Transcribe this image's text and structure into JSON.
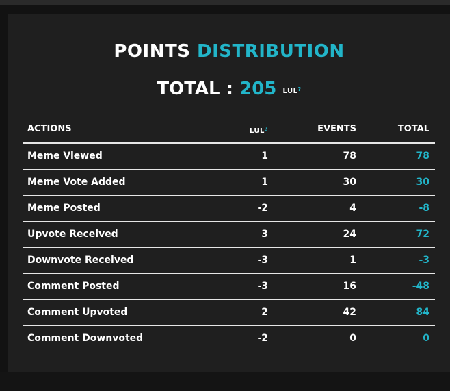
{
  "heading": {
    "word1": "POINTS",
    "word2": "DISTRIBUTION"
  },
  "total": {
    "label": "TOTAL :",
    "value": "205",
    "unit": "LUL",
    "unit_mark": "?"
  },
  "table": {
    "headers": {
      "actions": "ACTIONS",
      "lul": "LUL",
      "lul_mark": "?",
      "events": "EVENTS",
      "total": "TOTAL"
    },
    "rows": [
      {
        "action": "Meme Viewed",
        "lul": "1",
        "events": "78",
        "total": "78"
      },
      {
        "action": "Meme Vote Added",
        "lul": "1",
        "events": "30",
        "total": "30"
      },
      {
        "action": "Meme Posted",
        "lul": "-2",
        "events": "4",
        "total": "-8"
      },
      {
        "action": "Upvote Received",
        "lul": "3",
        "events": "24",
        "total": "72"
      },
      {
        "action": "Downvote Received",
        "lul": "-3",
        "events": "1",
        "total": "-3"
      },
      {
        "action": "Comment Posted",
        "lul": "-3",
        "events": "16",
        "total": "-48"
      },
      {
        "action": "Comment Upvoted",
        "lul": "2",
        "events": "42",
        "total": "84"
      },
      {
        "action": "Comment Downvoted",
        "lul": "-2",
        "events": "0",
        "total": "0"
      }
    ]
  },
  "colors": {
    "accent": "#22b5c9",
    "panel": "#1f1f1f",
    "text": "#ffffff"
  }
}
